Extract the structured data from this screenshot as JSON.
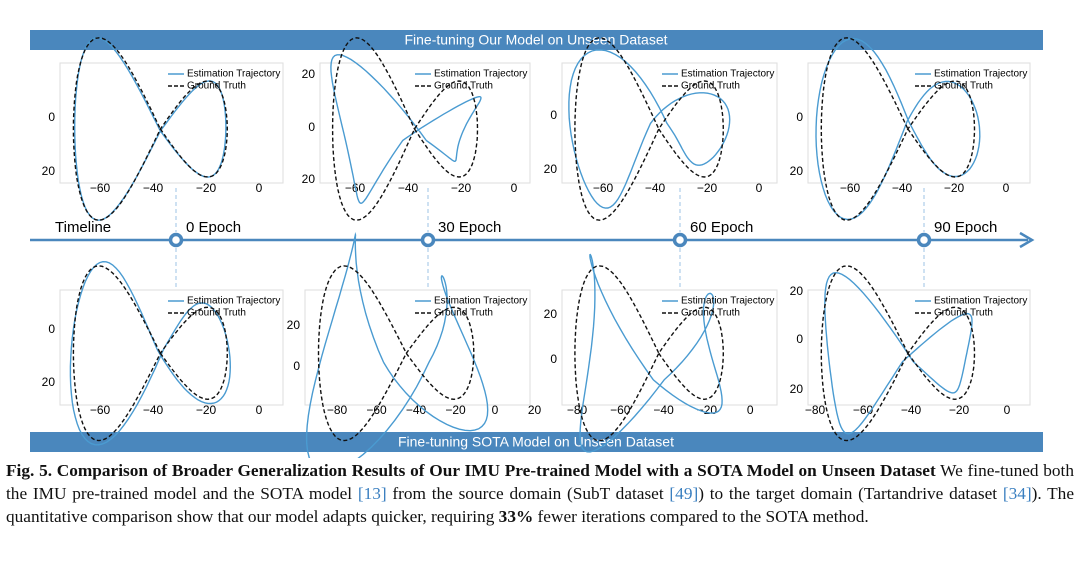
{
  "top_banner": "Fine-tuning Our Model on Unseen Dataset",
  "bottom_banner": "Fine-tuning SOTA Model on Unseen Dataset",
  "timeline": {
    "label": "Timeline",
    "epochs": [
      "0 Epoch",
      "30 Epoch",
      "60 Epoch",
      "90 Epoch"
    ]
  },
  "legend": [
    "Estimation Trajectory",
    "Ground Truth"
  ],
  "panels": [
    {
      "xticks": [
        "−60",
        "−40",
        "−20",
        "0"
      ],
      "yticks": [
        "0",
        "20"
      ]
    },
    {
      "xticks": [
        "−60",
        "−40",
        "−20",
        "0"
      ],
      "yticks": [
        "20",
        "0",
        "20"
      ]
    },
    {
      "xticks": [
        "−60",
        "−40",
        "−20",
        "0"
      ],
      "yticks": [
        "0",
        "20"
      ]
    },
    {
      "xticks": [
        "−60",
        "−40",
        "−20",
        "0"
      ],
      "yticks": [
        "0",
        "20"
      ]
    },
    {
      "xticks": [
        "−60",
        "−40",
        "−20",
        "0"
      ],
      "yticks": [
        "0",
        "20"
      ]
    },
    {
      "xticks": [
        "−80",
        "−60",
        "−40",
        "−20",
        "0",
        "20"
      ],
      "yticks": [
        "20",
        "0"
      ]
    },
    {
      "xticks": [
        "−80",
        "−60",
        "−40",
        "−20",
        "0"
      ],
      "yticks": [
        "20",
        "0"
      ]
    },
    {
      "xticks": [
        "−80",
        "−60",
        "−40",
        "−20",
        "0"
      ],
      "yticks": [
        "20",
        "0",
        "20"
      ]
    }
  ],
  "caption": {
    "title": "Fig. 5. Comparison of Broader Generalization Results of Our IMU Pre-trained Model with a SOTA Model on Unseen Dataset",
    "segments": [
      " We fine-tuned both the IMU pre-trained model and the SOTA model ",
      "[13]",
      " from the source domain (SubT dataset ",
      "[49]",
      ") to the target domain (Tartandrive dataset ",
      "[34]",
      "). The quantitative comparison show that our model adapts quicker, requiring ",
      "33%",
      " fewer iterations compared to the SOTA method."
    ]
  }
}
